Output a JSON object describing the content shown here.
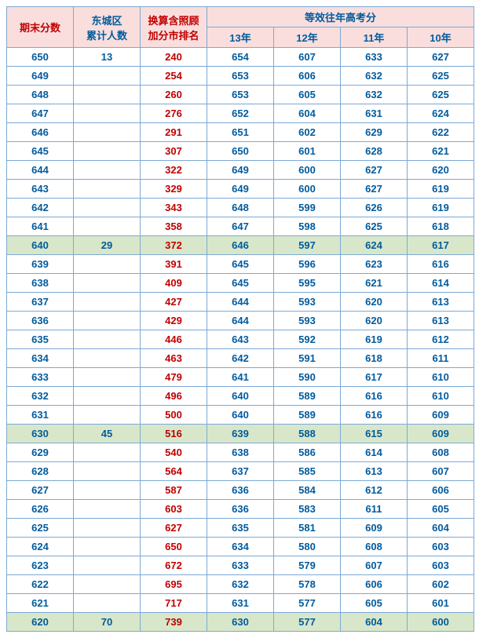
{
  "headers": {
    "col1": "期末分数",
    "col2": "东城区\n累计人数",
    "col3": "换算含照顾\n加分市排名",
    "group": "等效往年高考分",
    "years": [
      "13年",
      "12年",
      "11年",
      "10年"
    ]
  },
  "rows": [
    {
      "score": "650",
      "cum": "13",
      "rank": "240",
      "y13": "654",
      "y12": "607",
      "y11": "633",
      "y10": "627",
      "hl": false
    },
    {
      "score": "649",
      "cum": "",
      "rank": "254",
      "y13": "653",
      "y12": "606",
      "y11": "632",
      "y10": "625",
      "hl": false
    },
    {
      "score": "648",
      "cum": "",
      "rank": "260",
      "y13": "653",
      "y12": "605",
      "y11": "632",
      "y10": "625",
      "hl": false
    },
    {
      "score": "647",
      "cum": "",
      "rank": "276",
      "y13": "652",
      "y12": "604",
      "y11": "631",
      "y10": "624",
      "hl": false
    },
    {
      "score": "646",
      "cum": "",
      "rank": "291",
      "y13": "651",
      "y12": "602",
      "y11": "629",
      "y10": "622",
      "hl": false
    },
    {
      "score": "645",
      "cum": "",
      "rank": "307",
      "y13": "650",
      "y12": "601",
      "y11": "628",
      "y10": "621",
      "hl": false
    },
    {
      "score": "644",
      "cum": "",
      "rank": "322",
      "y13": "649",
      "y12": "600",
      "y11": "627",
      "y10": "620",
      "hl": false
    },
    {
      "score": "643",
      "cum": "",
      "rank": "329",
      "y13": "649",
      "y12": "600",
      "y11": "627",
      "y10": "619",
      "hl": false
    },
    {
      "score": "642",
      "cum": "",
      "rank": "343",
      "y13": "648",
      "y12": "599",
      "y11": "626",
      "y10": "619",
      "hl": false
    },
    {
      "score": "641",
      "cum": "",
      "rank": "358",
      "y13": "647",
      "y12": "598",
      "y11": "625",
      "y10": "618",
      "hl": false
    },
    {
      "score": "640",
      "cum": "29",
      "rank": "372",
      "y13": "646",
      "y12": "597",
      "y11": "624",
      "y10": "617",
      "hl": true
    },
    {
      "score": "639",
      "cum": "",
      "rank": "391",
      "y13": "645",
      "y12": "596",
      "y11": "623",
      "y10": "616",
      "hl": false
    },
    {
      "score": "638",
      "cum": "",
      "rank": "409",
      "y13": "645",
      "y12": "595",
      "y11": "621",
      "y10": "614",
      "hl": false
    },
    {
      "score": "637",
      "cum": "",
      "rank": "427",
      "y13": "644",
      "y12": "593",
      "y11": "620",
      "y10": "613",
      "hl": false
    },
    {
      "score": "636",
      "cum": "",
      "rank": "429",
      "y13": "644",
      "y12": "593",
      "y11": "620",
      "y10": "613",
      "hl": false
    },
    {
      "score": "635",
      "cum": "",
      "rank": "446",
      "y13": "643",
      "y12": "592",
      "y11": "619",
      "y10": "612",
      "hl": false
    },
    {
      "score": "634",
      "cum": "",
      "rank": "463",
      "y13": "642",
      "y12": "591",
      "y11": "618",
      "y10": "611",
      "hl": false
    },
    {
      "score": "633",
      "cum": "",
      "rank": "479",
      "y13": "641",
      "y12": "590",
      "y11": "617",
      "y10": "610",
      "hl": false
    },
    {
      "score": "632",
      "cum": "",
      "rank": "496",
      "y13": "640",
      "y12": "589",
      "y11": "616",
      "y10": "610",
      "hl": false
    },
    {
      "score": "631",
      "cum": "",
      "rank": "500",
      "y13": "640",
      "y12": "589",
      "y11": "616",
      "y10": "609",
      "hl": false
    },
    {
      "score": "630",
      "cum": "45",
      "rank": "516",
      "y13": "639",
      "y12": "588",
      "y11": "615",
      "y10": "609",
      "hl": true
    },
    {
      "score": "629",
      "cum": "",
      "rank": "540",
      "y13": "638",
      "y12": "586",
      "y11": "614",
      "y10": "608",
      "hl": false
    },
    {
      "score": "628",
      "cum": "",
      "rank": "564",
      "y13": "637",
      "y12": "585",
      "y11": "613",
      "y10": "607",
      "hl": false
    },
    {
      "score": "627",
      "cum": "",
      "rank": "587",
      "y13": "636",
      "y12": "584",
      "y11": "612",
      "y10": "606",
      "hl": false
    },
    {
      "score": "626",
      "cum": "",
      "rank": "603",
      "y13": "636",
      "y12": "583",
      "y11": "611",
      "y10": "605",
      "hl": false
    },
    {
      "score": "625",
      "cum": "",
      "rank": "627",
      "y13": "635",
      "y12": "581",
      "y11": "609",
      "y10": "604",
      "hl": false
    },
    {
      "score": "624",
      "cum": "",
      "rank": "650",
      "y13": "634",
      "y12": "580",
      "y11": "608",
      "y10": "603",
      "hl": false
    },
    {
      "score": "623",
      "cum": "",
      "rank": "672",
      "y13": "633",
      "y12": "579",
      "y11": "607",
      "y10": "603",
      "hl": false
    },
    {
      "score": "622",
      "cum": "",
      "rank": "695",
      "y13": "632",
      "y12": "578",
      "y11": "606",
      "y10": "602",
      "hl": false
    },
    {
      "score": "621",
      "cum": "",
      "rank": "717",
      "y13": "631",
      "y12": "577",
      "y11": "605",
      "y10": "601",
      "hl": false
    },
    {
      "score": "620",
      "cum": "70",
      "rank": "739",
      "y13": "630",
      "y12": "577",
      "y11": "604",
      "y10": "600",
      "hl": true
    }
  ],
  "colors": {
    "header_bg": "#f9dedd",
    "highlight_bg": "#d8e7c9",
    "border": "#7ba9d6",
    "text_blue": "#005b9e",
    "text_red": "#c00000"
  }
}
